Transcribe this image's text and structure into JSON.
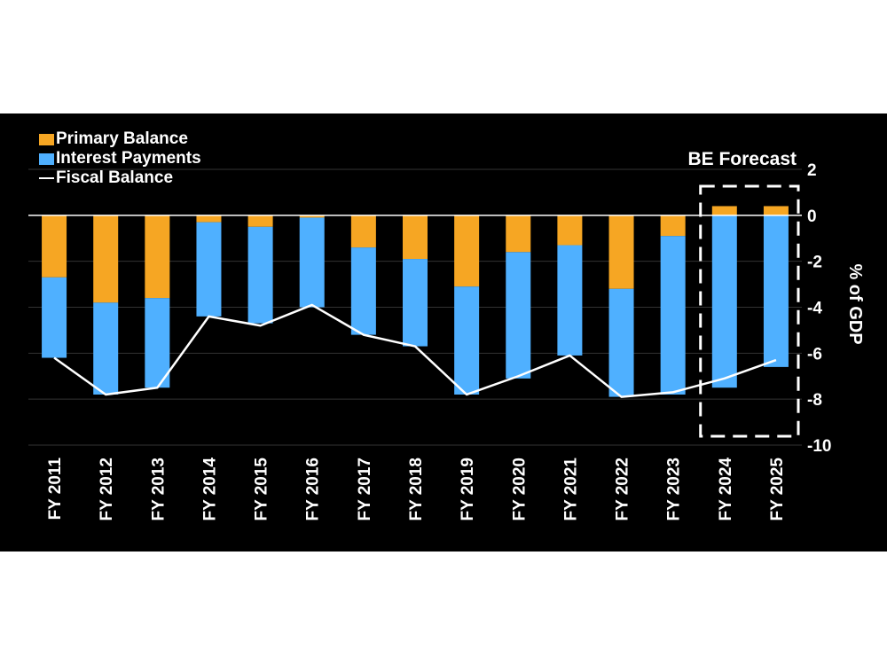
{
  "chart_data": {
    "type": "bar",
    "stacked": true,
    "categories": [
      "FY 2011",
      "FY 2012",
      "FY 2013",
      "FY 2014",
      "FY 2015",
      "FY 2016",
      "FY 2017",
      "FY 2018",
      "FY 2019",
      "FY 2020",
      "FY 2021",
      "FY 2022",
      "FY 2023",
      "FY 2024",
      "FY 2025"
    ],
    "series": [
      {
        "name": "Primary Balance",
        "type": "bar",
        "color": "#f6a623",
        "values": [
          -2.7,
          -3.8,
          -3.6,
          -0.3,
          -0.5,
          -0.1,
          -1.4,
          -1.9,
          -3.1,
          -1.6,
          -1.3,
          -3.2,
          -0.9,
          0.4,
          0.4
        ]
      },
      {
        "name": "Interest Payments",
        "type": "bar",
        "color": "#4fb0ff",
        "values": [
          -3.5,
          -4.0,
          -3.9,
          -4.1,
          -4.2,
          -3.9,
          -3.8,
          -3.8,
          -4.7,
          -5.5,
          -4.8,
          -4.7,
          -6.9,
          -7.5,
          -6.6
        ]
      },
      {
        "name": "Fiscal Balance",
        "type": "line",
        "color": "#ffffff",
        "values": [
          -6.2,
          -7.8,
          -7.5,
          -4.4,
          -4.8,
          -3.9,
          -5.2,
          -5.7,
          -7.8,
          -7.0,
          -6.1,
          -7.9,
          -7.7,
          -7.1,
          -6.3
        ]
      }
    ],
    "ylabel": "% of GDP",
    "ylim": [
      -10,
      2
    ],
    "yticks": [
      2,
      0,
      -2,
      -4,
      -6,
      -8,
      -10
    ],
    "ytick_labels": [
      "2",
      "0",
      "-2",
      "-4",
      "-6",
      "-8",
      "-10"
    ],
    "y_axis_side": "right",
    "grid": true,
    "legend_position": "top-left",
    "forecast_label": "BE Forecast",
    "forecast_categories": [
      "FY 2024",
      "FY 2025"
    ]
  }
}
